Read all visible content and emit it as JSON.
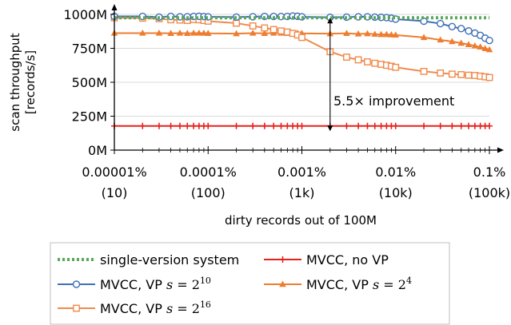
{
  "chart_data": {
    "type": "line",
    "xlabel": "dirty records out of 100M",
    "ylabel": [
      "scan throughput",
      "[records/s]"
    ],
    "xscale": "log",
    "xlim": [
      1e-05,
      0.1
    ],
    "ylim": [
      0,
      1000
    ],
    "x_ticks": [
      {
        "value": 1e-05,
        "label": "0.00001%",
        "sub": "(10)"
      },
      {
        "value": 0.0001,
        "label": "0.0001%",
        "sub": "(100)"
      },
      {
        "value": 0.001,
        "label": "0.001%",
        "sub": "(1k)"
      },
      {
        "value": 0.01,
        "label": "0.01%",
        "sub": "(10k)"
      },
      {
        "value": 0.1,
        "label": "0.1%",
        "sub": "(100k)"
      }
    ],
    "y_ticks": [
      {
        "value": 0,
        "label": "0M"
      },
      {
        "value": 250,
        "label": "250M"
      },
      {
        "value": 500,
        "label": "500M"
      },
      {
        "value": 750,
        "label": "750M"
      },
      {
        "value": 1000,
        "label": "1000M"
      }
    ],
    "annotation": {
      "text": "5.5× improvement",
      "x": 0.002,
      "y_from": 140,
      "y_to": 975
    },
    "legend_position": "bottom",
    "x": [
      1e-05,
      2e-05,
      3e-05,
      4e-05,
      5e-05,
      6e-05,
      7e-05,
      8e-05,
      9e-05,
      0.0001,
      0.0002,
      0.0003,
      0.0004,
      0.0005,
      0.0006,
      0.0007,
      0.0008,
      0.0009,
      0.001,
      0.002,
      0.003,
      0.004,
      0.005,
      0.006,
      0.007,
      0.008,
      0.009,
      0.01,
      0.02,
      0.03,
      0.04,
      0.05,
      0.06,
      0.07,
      0.08,
      0.09,
      0.1
    ],
    "series": [
      {
        "name": "single-version system",
        "color": "#5aa85a",
        "style": "dotted",
        "marker": "none",
        "values": [
          975,
          975,
          975,
          975,
          975,
          975,
          975,
          975,
          975,
          975,
          975,
          975,
          975,
          975,
          975,
          975,
          975,
          975,
          975,
          975,
          975,
          975,
          975,
          975,
          975,
          975,
          975,
          975,
          975,
          975,
          975,
          975,
          975,
          975,
          975,
          975,
          975
        ]
      },
      {
        "name": "MVCC, no VP",
        "color": "#e8201a",
        "style": "solid",
        "marker": "plus",
        "values": [
          178,
          178,
          178,
          178,
          178,
          178,
          178,
          178,
          178,
          178,
          178,
          178,
          178,
          178,
          178,
          178,
          178,
          178,
          178,
          178,
          178,
          178,
          178,
          178,
          178,
          178,
          178,
          178,
          178,
          178,
          178,
          178,
          178,
          178,
          178,
          178,
          178
        ]
      },
      {
        "name": "MVCC, VP s = 2^10",
        "legend_base": "MVCC, VP ",
        "legend_sym": "s",
        "legend_exp": "10",
        "color": "#3e6fb5",
        "style": "solid",
        "marker": "circle",
        "values": [
          985,
          985,
          980,
          985,
          982,
          983,
          985,
          986,
          984,
          982,
          980,
          983,
          985,
          985,
          984,
          985,
          988,
          986,
          982,
          978,
          980,
          982,
          982,
          980,
          978,
          976,
          972,
          965,
          950,
          932,
          910,
          895,
          878,
          862,
          845,
          825,
          808
        ]
      },
      {
        "name": "MVCC, VP s = 2^4",
        "legend_base": "MVCC, VP ",
        "legend_sym": "s",
        "legend_exp": "4",
        "color": "#ee7d30",
        "style": "solid",
        "marker": "triangle",
        "values": [
          862,
          862,
          862,
          860,
          862,
          860,
          862,
          862,
          862,
          860,
          858,
          862,
          860,
          862,
          862,
          860,
          862,
          862,
          860,
          858,
          860,
          856,
          858,
          854,
          852,
          852,
          850,
          848,
          830,
          812,
          800,
          788,
          778,
          768,
          760,
          748,
          740
        ]
      },
      {
        "name": "MVCC, VP s = 2^16",
        "legend_base": "MVCC, VP ",
        "legend_sym": "s",
        "legend_exp": "16",
        "color": "#f08a4b",
        "style": "solid",
        "marker": "square",
        "values": [
          975,
          972,
          968,
          960,
          958,
          955,
          962,
          960,
          955,
          950,
          935,
          915,
          900,
          888,
          878,
          870,
          860,
          848,
          830,
          725,
          685,
          665,
          650,
          640,
          632,
          625,
          618,
          610,
          580,
          568,
          560,
          556,
          552,
          550,
          545,
          540,
          535
        ]
      }
    ]
  }
}
